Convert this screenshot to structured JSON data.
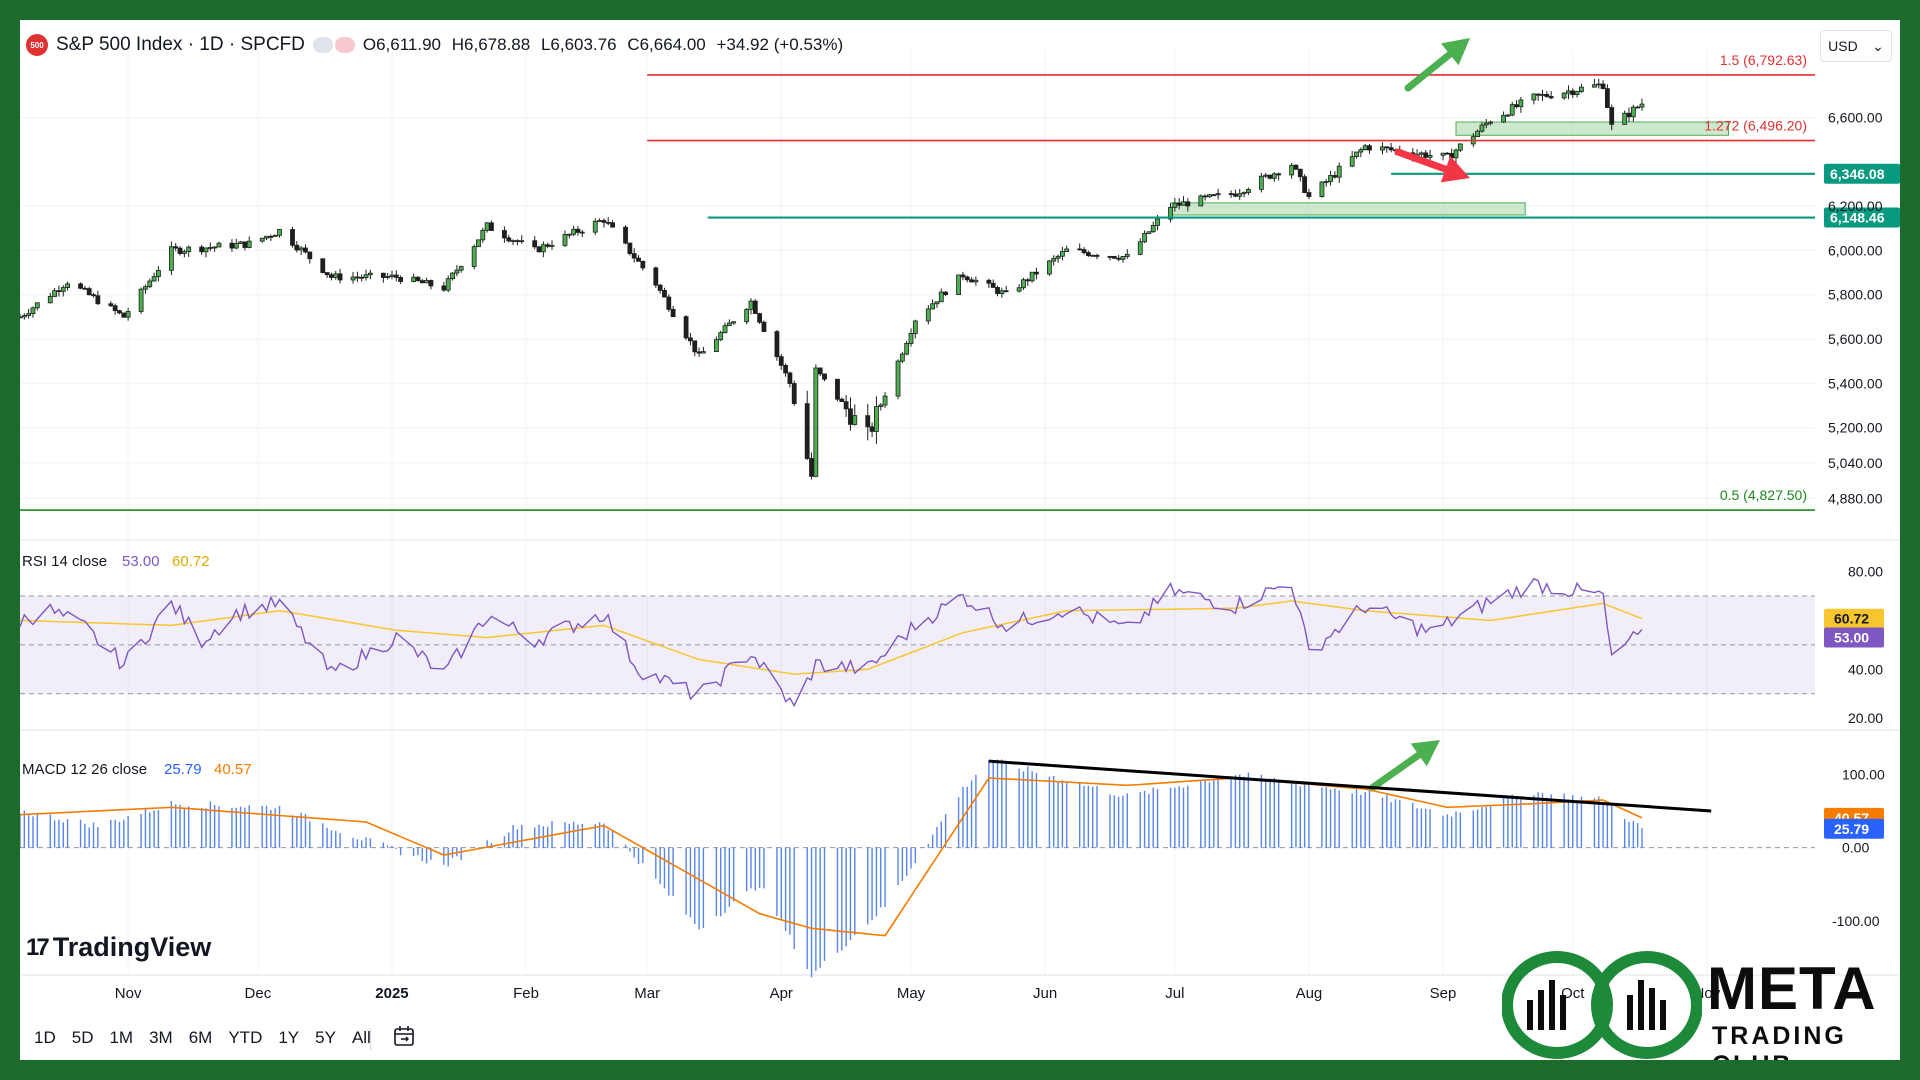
{
  "header": {
    "title": "S&P 500 Index · 1D · SPCFD",
    "badge": "500",
    "open": "O6,611.90",
    "high": "H6,678.88",
    "low": "L6,603.76",
    "close": "C6,664.00",
    "change": "+34.92 (+0.53%)"
  },
  "currency": {
    "label": "USD",
    "chevron": "⌄"
  },
  "watermark": {
    "name": "TradingView",
    "mark": "17"
  },
  "timeframes": [
    "1D",
    "5D",
    "1M",
    "3M",
    "6M",
    "YTD",
    "1Y",
    "5Y",
    "All"
  ],
  "brand": {
    "word": "META",
    "sub": "TRADING CLUB"
  },
  "colors": {
    "up": "#26a69a",
    "down": "#ef5350",
    "candle": "#1f1f1f",
    "support": "#089981",
    "fib": "#e03131",
    "fib05": "#1b8a1b",
    "rsi": "#7e57c2",
    "rsi_ma": "#f7c62f",
    "macd": "#2962ff",
    "signal": "#f57c00",
    "hist": "#3b6ee8",
    "zone": "#a5d6a7",
    "arrow_up": "#4caf50",
    "arrow_down": "#f23645"
  },
  "chart_data": [
    {
      "type": "candlestick",
      "title": "S&P 500 Index · 1D · SPCFD",
      "ylim": [
        4760,
        6860
      ],
      "y_ticks": [
        4880,
        5040,
        5200,
        5400,
        5600,
        5800,
        6000,
        6200,
        6600
      ],
      "x_ticks": [
        "Nov",
        "Dec",
        "2025",
        "Feb",
        "Mar",
        "Apr",
        "May",
        "Jun",
        "Jul",
        "Aug",
        "Sep",
        "Oct",
        "Nov"
      ],
      "x_tick_dates": [
        "2024-11-01",
        "2024-12-01",
        "2025-01-01",
        "2025-02-01",
        "2025-03-01",
        "2025-04-01",
        "2025-05-01",
        "2025-06-01",
        "2025-07-01",
        "2025-08-01",
        "2025-09-01",
        "2025-10-01",
        "2025-11-01"
      ],
      "x_range": [
        "2024-10-07",
        "2025-11-26"
      ],
      "close_series": [
        {
          "date": "2024-10-07",
          "close": 5700
        },
        {
          "date": "2024-10-18",
          "close": 5860
        },
        {
          "date": "2024-10-31",
          "close": 5700
        },
        {
          "date": "2024-11-11",
          "close": 6000
        },
        {
          "date": "2024-11-29",
          "close": 6030
        },
        {
          "date": "2024-12-06",
          "close": 6090
        },
        {
          "date": "2024-12-18",
          "close": 5880
        },
        {
          "date": "2025-01-02",
          "close": 5880
        },
        {
          "date": "2025-01-13",
          "close": 5830
        },
        {
          "date": "2025-01-23",
          "close": 6110
        },
        {
          "date": "2025-02-03",
          "close": 6000
        },
        {
          "date": "2025-02-19",
          "close": 6140
        },
        {
          "date": "2025-03-03",
          "close": 5850
        },
        {
          "date": "2025-03-13",
          "close": 5520
        },
        {
          "date": "2025-03-25",
          "close": 5770
        },
        {
          "date": "2025-04-03",
          "close": 5400
        },
        {
          "date": "2025-04-08",
          "close": 4980
        },
        {
          "date": "2025-04-09",
          "close": 5460
        },
        {
          "date": "2025-04-21",
          "close": 5160
        },
        {
          "date": "2025-05-02",
          "close": 5690
        },
        {
          "date": "2025-05-13",
          "close": 5890
        },
        {
          "date": "2025-05-23",
          "close": 5800
        },
        {
          "date": "2025-06-06",
          "close": 6000
        },
        {
          "date": "2025-06-20",
          "close": 5970
        },
        {
          "date": "2025-06-30",
          "close": 6200
        },
        {
          "date": "2025-07-15",
          "close": 6260
        },
        {
          "date": "2025-07-28",
          "close": 6390
        },
        {
          "date": "2025-08-01",
          "close": 6240
        },
        {
          "date": "2025-08-14",
          "close": 6470
        },
        {
          "date": "2025-09-02",
          "close": 6420
        },
        {
          "date": "2025-09-12",
          "close": 6590
        },
        {
          "date": "2025-09-22",
          "close": 6690
        },
        {
          "date": "2025-10-08",
          "close": 6750
        },
        {
          "date": "2025-10-10",
          "close": 6560
        },
        {
          "date": "2025-10-17",
          "close": 6664
        }
      ],
      "levels": [
        {
          "label": "1.5 (6,792.63)",
          "value": 6792.63,
          "kind": "fib"
        },
        {
          "label": "1.272 (6,496.20)",
          "value": 6496.2,
          "kind": "fib"
        },
        {
          "label": "6,346.08",
          "value": 6346.08,
          "kind": "support"
        },
        {
          "label": "6,148.46",
          "value": 6148.46,
          "kind": "support"
        },
        {
          "label": "0.5 (4,827.50)",
          "value": 4827.5,
          "kind": "fib05"
        }
      ],
      "zones": [
        {
          "from": "2025-09-04",
          "to": "2025-11-06",
          "low": 6520,
          "high": 6580
        },
        {
          "from": "2025-06-30",
          "to": "2025-09-20",
          "low": 6160,
          "high": 6215
        }
      ]
    },
    {
      "type": "line",
      "title": "RSI 14 close",
      "series": [
        {
          "name": "RSI",
          "last": 53.0,
          "values": [
            {
              "date": "2024-10-07",
              "v": 60
            },
            {
              "date": "2024-10-14",
              "v": 64
            },
            {
              "date": "2024-10-22",
              "v": 57
            },
            {
              "date": "2024-10-31",
              "v": 42
            },
            {
              "date": "2024-11-11",
              "v": 67
            },
            {
              "date": "2024-11-18",
              "v": 52
            },
            {
              "date": "2024-11-26",
              "v": 63
            },
            {
              "date": "2024-12-06",
              "v": 67
            },
            {
              "date": "2024-12-18",
              "v": 38
            },
            {
              "date": "2025-01-02",
              "v": 53
            },
            {
              "date": "2025-01-13",
              "v": 38
            },
            {
              "date": "2025-01-23",
              "v": 62
            },
            {
              "date": "2025-02-03",
              "v": 52
            },
            {
              "date": "2025-02-19",
              "v": 63
            },
            {
              "date": "2025-02-27",
              "v": 40
            },
            {
              "date": "2025-03-13",
              "v": 29
            },
            {
              "date": "2025-03-25",
              "v": 47
            },
            {
              "date": "2025-04-04",
              "v": 24
            },
            {
              "date": "2025-04-09",
              "v": 42
            },
            {
              "date": "2025-04-21",
              "v": 40
            },
            {
              "date": "2025-05-02",
              "v": 58
            },
            {
              "date": "2025-05-13",
              "v": 70
            },
            {
              "date": "2025-05-23",
              "v": 58
            },
            {
              "date": "2025-06-06",
              "v": 65
            },
            {
              "date": "2025-06-20",
              "v": 56
            },
            {
              "date": "2025-06-30",
              "v": 72
            },
            {
              "date": "2025-07-15",
              "v": 66
            },
            {
              "date": "2025-07-28",
              "v": 76
            },
            {
              "date": "2025-08-01",
              "v": 47
            },
            {
              "date": "2025-08-14",
              "v": 66
            },
            {
              "date": "2025-08-29",
              "v": 55
            },
            {
              "date": "2025-09-12",
              "v": 68
            },
            {
              "date": "2025-09-22",
              "v": 75
            },
            {
              "date": "2025-10-08",
              "v": 70
            },
            {
              "date": "2025-10-10",
              "v": 43
            },
            {
              "date": "2025-10-14",
              "v": 52
            },
            {
              "date": "2025-10-17",
              "v": 53
            }
          ]
        },
        {
          "name": "RSI-based MA",
          "last": 60.72,
          "values": [
            {
              "date": "2024-10-07",
              "v": 60
            },
            {
              "date": "2024-11-11",
              "v": 58
            },
            {
              "date": "2024-12-06",
              "v": 64
            },
            {
              "date": "2025-01-02",
              "v": 56
            },
            {
              "date": "2025-01-23",
              "v": 53
            },
            {
              "date": "2025-02-19",
              "v": 58
            },
            {
              "date": "2025-03-13",
              "v": 44
            },
            {
              "date": "2025-04-04",
              "v": 38
            },
            {
              "date": "2025-04-21",
              "v": 40
            },
            {
              "date": "2025-05-13",
              "v": 55
            },
            {
              "date": "2025-06-06",
              "v": 64
            },
            {
              "date": "2025-07-15",
              "v": 65
            },
            {
              "date": "2025-07-28",
              "v": 68
            },
            {
              "date": "2025-08-14",
              "v": 64
            },
            {
              "date": "2025-09-12",
              "v": 60
            },
            {
              "date": "2025-10-08",
              "v": 67
            },
            {
              "date": "2025-10-17",
              "v": 60.72
            }
          ]
        }
      ],
      "ylim": [
        18,
        86
      ],
      "y_ticks": [
        20.0,
        40.0,
        80.0
      ],
      "bands": [
        30,
        50,
        70
      ]
    },
    {
      "type": "bar",
      "title": "MACD 12 26 close",
      "series": [
        {
          "name": "MACD",
          "last": 25.79,
          "values": [
            {
              "date": "2024-10-07",
              "v": 50
            },
            {
              "date": "2024-10-25",
              "v": 30
            },
            {
              "date": "2024-11-11",
              "v": 60
            },
            {
              "date": "2024-12-06",
              "v": 55
            },
            {
              "date": "2024-12-26",
              "v": 10
            },
            {
              "date": "2025-01-13",
              "v": -25
            },
            {
              "date": "2025-01-30",
              "v": 30
            },
            {
              "date": "2025-02-19",
              "v": 35
            },
            {
              "date": "2025-03-13",
              "v": -110
            },
            {
              "date": "2025-03-27",
              "v": -50
            },
            {
              "date": "2025-04-08",
              "v": -175
            },
            {
              "date": "2025-04-25",
              "v": -80
            },
            {
              "date": "2025-05-13",
              "v": 80
            },
            {
              "date": "2025-05-19",
              "v": 120
            },
            {
              "date": "2025-06-20",
              "v": 70
            },
            {
              "date": "2025-07-15",
              "v": 100
            },
            {
              "date": "2025-08-14",
              "v": 75
            },
            {
              "date": "2025-09-02",
              "v": 45
            },
            {
              "date": "2025-09-22",
              "v": 75
            },
            {
              "date": "2025-10-08",
              "v": 65
            },
            {
              "date": "2025-10-17",
              "v": 25.79
            }
          ]
        },
        {
          "name": "Signal",
          "last": 40.57,
          "values": [
            {
              "date": "2024-10-07",
              "v": 45
            },
            {
              "date": "2024-11-11",
              "v": 55
            },
            {
              "date": "2024-12-26",
              "v": 35
            },
            {
              "date": "2025-01-13",
              "v": -10
            },
            {
              "date": "2025-02-19",
              "v": 30
            },
            {
              "date": "2025-03-27",
              "v": -90
            },
            {
              "date": "2025-04-08",
              "v": -110
            },
            {
              "date": "2025-04-25",
              "v": -120
            },
            {
              "date": "2025-05-19",
              "v": 95
            },
            {
              "date": "2025-06-20",
              "v": 85
            },
            {
              "date": "2025-07-15",
              "v": 95
            },
            {
              "date": "2025-08-14",
              "v": 80
            },
            {
              "date": "2025-09-02",
              "v": 55
            },
            {
              "date": "2025-09-22",
              "v": 60
            },
            {
              "date": "2025-10-08",
              "v": 65
            },
            {
              "date": "2025-10-17",
              "v": 40.57
            }
          ]
        }
      ],
      "ylim": [
        -160,
        140
      ],
      "y_ticks": [
        -100.0,
        0.0,
        100.0
      ],
      "trendline": {
        "from": [
          "2025-05-19",
          118
        ],
        "to": [
          "2025-11-02",
          50
        ]
      }
    }
  ]
}
